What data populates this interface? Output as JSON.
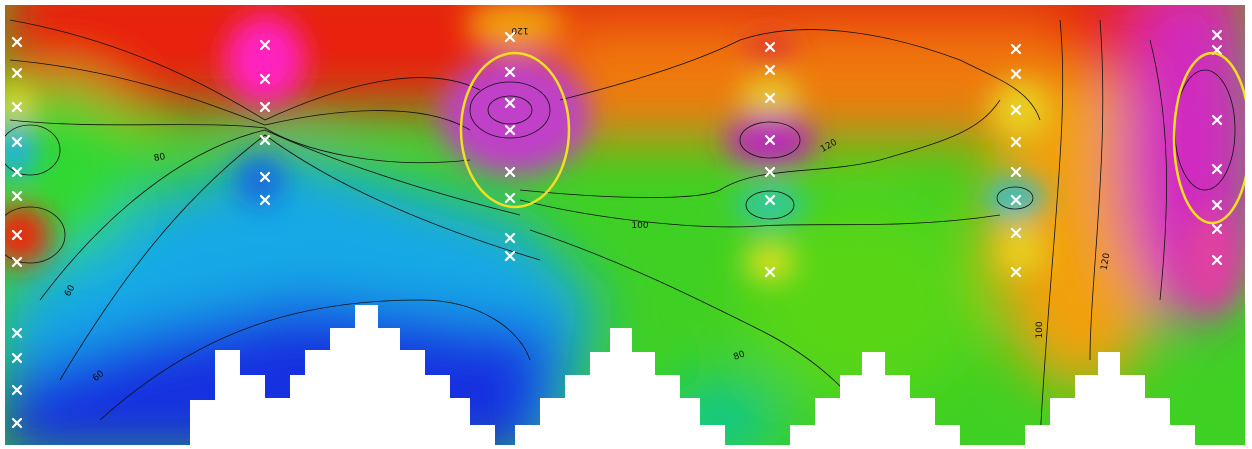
{
  "contour_labels": [
    "80",
    "60",
    "60",
    "120",
    "100",
    "120",
    "80",
    "100",
    "120"
  ]
}
